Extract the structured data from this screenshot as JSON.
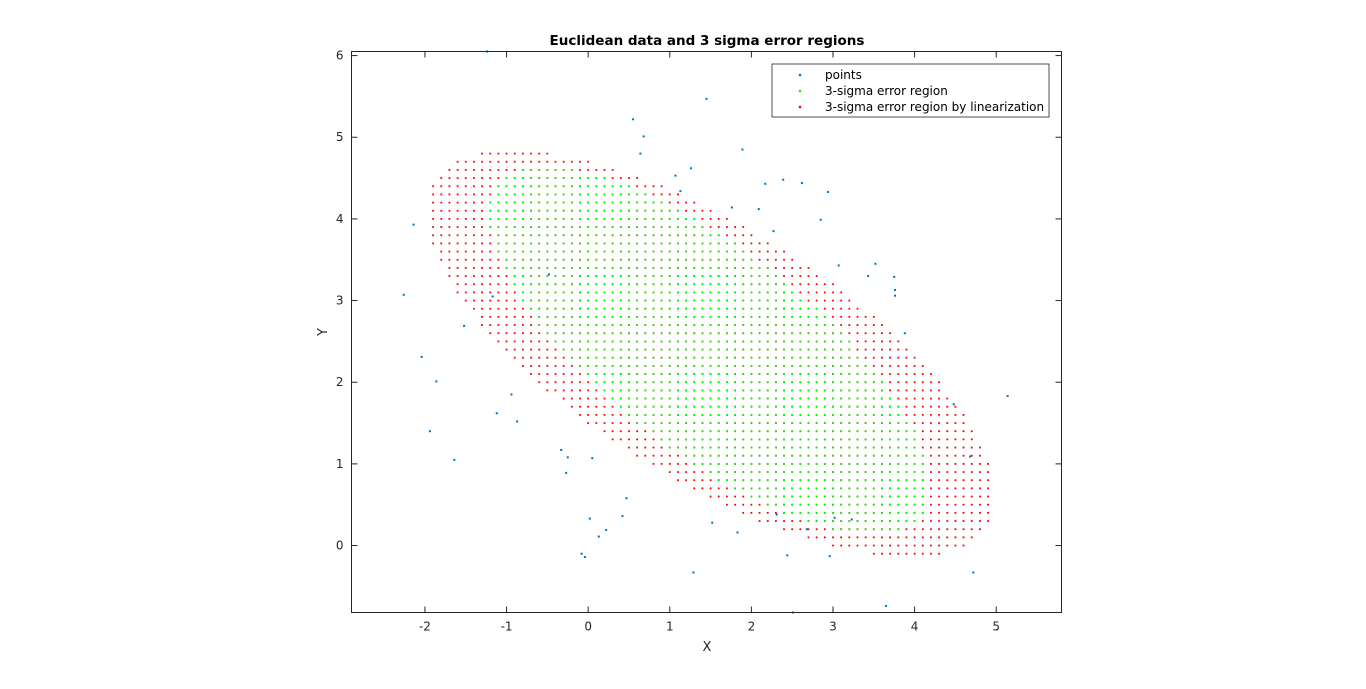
{
  "chart_data": {
    "type": "scatter",
    "title": "Euclidean data and 3 sigma error regions",
    "xlabel": "X",
    "ylabel": "Y",
    "xlim": [
      -2.9,
      5.8
    ],
    "ylim": [
      -0.82,
      6.05
    ],
    "xticks": [
      -2,
      -1,
      0,
      1,
      2,
      3,
      4,
      5
    ],
    "yticks": [
      0,
      1,
      2,
      3,
      4,
      5,
      6
    ],
    "grid": false,
    "legend_position": "top-right",
    "colors": {
      "points": "#0072bd",
      "green": "#00ff00",
      "red": "#ff0000",
      "axes": "#262626"
    },
    "series": [
      {
        "name": "points",
        "marker": "dot",
        "x": [
          -2.26,
          -2.14,
          -2.04,
          -1.94,
          -1.86,
          -1.64,
          -1.52,
          -1.12,
          -1.24,
          -1.17,
          -0.94,
          -0.87,
          -0.48,
          -0.33,
          -0.27,
          -0.25,
          -0.08,
          -0.04,
          0.02,
          0.05,
          0.13,
          0.22,
          0.42,
          0.47,
          0.55,
          0.64,
          0.68,
          1.07,
          1.13,
          1.26,
          1.29,
          1.45,
          1.52,
          1.76,
          1.83,
          1.89,
          2.09,
          2.17,
          2.27,
          2.31,
          2.39,
          2.44,
          2.51,
          2.62,
          2.68,
          2.85,
          2.94,
          2.96,
          3.02,
          3.07,
          3.23,
          3.43,
          3.52,
          3.65,
          3.75,
          3.76,
          3.76,
          3.88,
          4.48,
          4.68,
          4.72,
          5.14
        ],
        "y": [
          3.07,
          3.93,
          2.31,
          1.4,
          2.01,
          1.05,
          2.69,
          1.62,
          6.05,
          3.05,
          1.85,
          1.52,
          3.32,
          1.17,
          0.89,
          1.08,
          -0.1,
          -0.14,
          0.33,
          1.07,
          0.11,
          0.19,
          0.36,
          0.58,
          5.22,
          4.8,
          5.01,
          4.53,
          4.34,
          4.62,
          -0.33,
          5.47,
          0.28,
          4.14,
          0.16,
          4.85,
          4.12,
          4.43,
          3.85,
          0.38,
          4.48,
          -0.12,
          -0.82,
          4.44,
          0.2,
          3.99,
          4.33,
          -0.13,
          0.34,
          3.43,
          0.32,
          3.3,
          3.45,
          -0.74,
          3.29,
          3.13,
          3.06,
          2.6,
          1.73,
          1.09,
          -0.33,
          1.83
        ]
      },
      {
        "name": "3-sigma error region",
        "marker": "dot-grid",
        "center": [
          1.48,
          2.39
        ],
        "semi_axes": [
          3.3,
          1.25
        ],
        "angle_deg": -38,
        "spacing": 0.1
      },
      {
        "name": "3-sigma error region by linearization",
        "marker": "dot-grid",
        "center": [
          1.5,
          2.35
        ],
        "semi_axes": [
          4.0,
          1.55
        ],
        "angle_deg": -32,
        "spacing": 0.1
      }
    ]
  }
}
